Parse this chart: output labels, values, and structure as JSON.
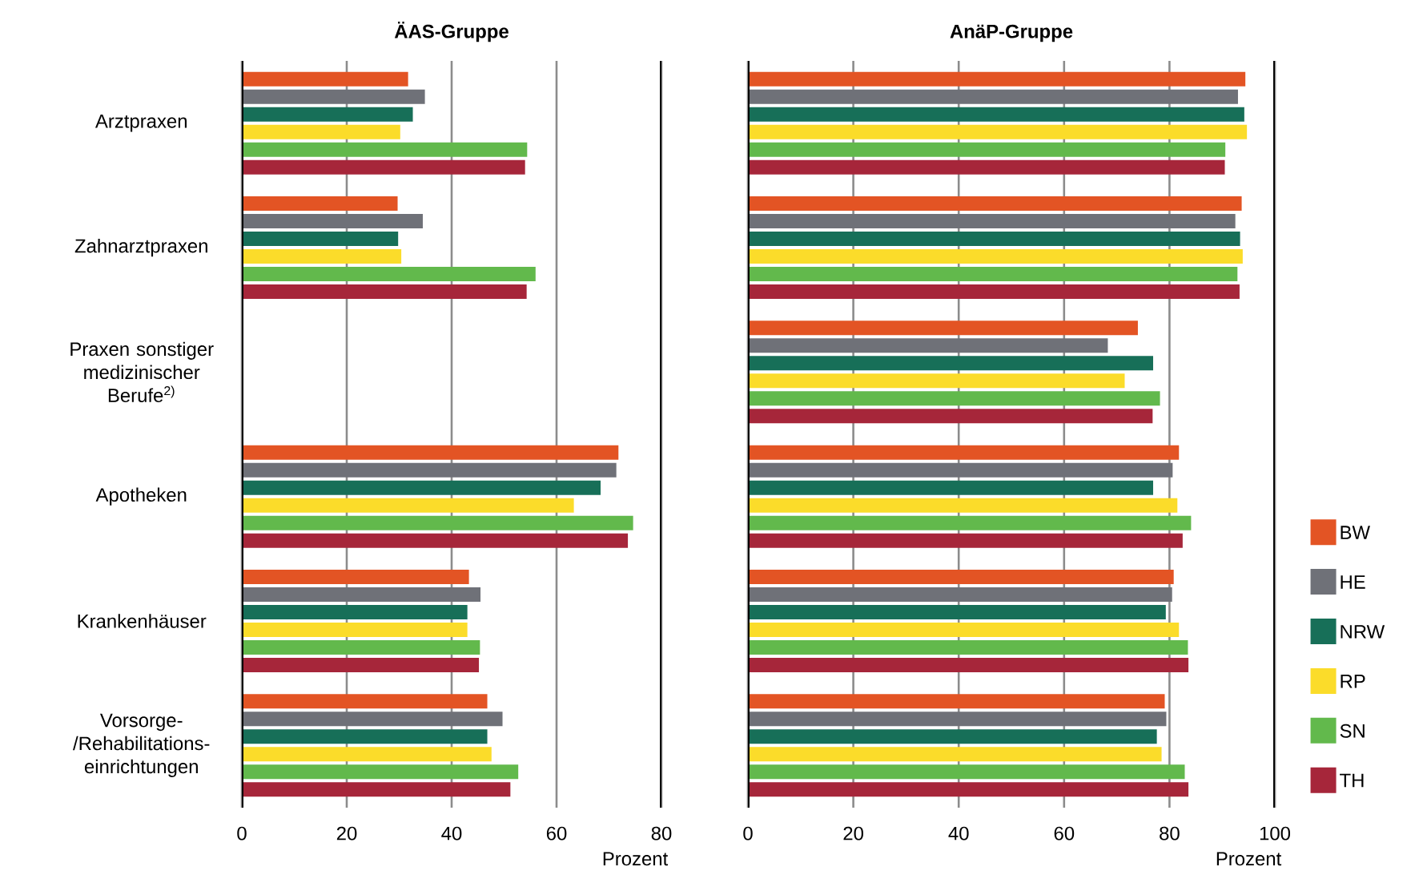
{
  "chart_data": [
    {
      "type": "bar",
      "orientation": "horizontal",
      "title": "ÄAS-Gruppe",
      "xlabel": "Prozent",
      "categories": [
        "Arztpraxen",
        "Zahnarztpraxen",
        "Praxen sonstiger medizinischer Berufe$^{2)}$",
        "Apotheken",
        "Krankenhäuser",
        "Vorsorge-/Rehabilitations-einrichtungen"
      ],
      "series": [
        {
          "color": "#e35424",
          "values": [
            31.7,
            29.7,
            null,
            71.8,
            43.3,
            46.8
          ]
        },
        {
          "color": "#6f7178",
          "values": [
            34.9,
            34.5,
            null,
            71.4,
            45.5,
            49.7
          ]
        },
        {
          "color": "#176f58",
          "values": [
            32.6,
            29.8,
            null,
            68.4,
            43.0,
            46.8
          ]
        },
        {
          "color": "#fbdc2a",
          "values": [
            30.2,
            30.4,
            null,
            63.3,
            43.0,
            47.6
          ]
        },
        {
          "color": "#62b94c",
          "values": [
            54.4,
            56.0,
            null,
            74.6,
            45.4,
            52.7
          ]
        },
        {
          "color": "#a6263a",
          "values": [
            54.0,
            54.3,
            null,
            73.6,
            45.2,
            51.2
          ]
        }
      ],
      "xlim": [
        0,
        80
      ],
      "xticks": [
        0,
        20,
        40,
        60,
        80
      ],
      "grid": "x"
    },
    {
      "type": "bar",
      "orientation": "horizontal",
      "title": "AnäP-Gruppe",
      "xlabel": "Prozent",
      "categories": [
        null,
        null,
        null,
        null,
        null,
        null
      ],
      "series": [
        {
          "name": "BW",
          "color": "#e35424",
          "values": [
            94.4,
            93.7,
            74.0,
            81.8,
            80.8,
            79.1
          ]
        },
        {
          "name": "HE",
          "color": "#6f7178",
          "values": [
            93.0,
            92.5,
            68.3,
            80.6,
            80.5,
            79.4
          ]
        },
        {
          "name": "NRW",
          "color": "#176f58",
          "values": [
            94.2,
            93.4,
            76.9,
            76.9,
            79.3,
            77.6
          ]
        },
        {
          "name": "RP",
          "color": "#fbdc2a",
          "values": [
            94.7,
            93.9,
            71.5,
            81.5,
            81.8,
            78.5
          ]
        },
        {
          "name": "SN",
          "color": "#62b94c",
          "values": [
            90.6,
            92.9,
            78.2,
            84.1,
            83.5,
            82.9
          ]
        },
        {
          "name": "TH",
          "color": "#a6263a",
          "values": [
            90.5,
            93.3,
            76.8,
            82.5,
            83.6,
            83.6
          ]
        }
      ],
      "xlim": [
        0,
        100
      ],
      "xticks": [
        0,
        20,
        40,
        60,
        80,
        100
      ],
      "grid": "x",
      "legend": "right"
    }
  ]
}
